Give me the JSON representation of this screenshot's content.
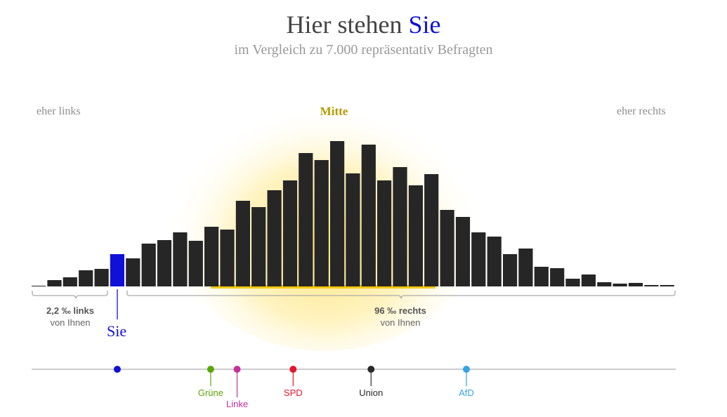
{
  "header": {
    "title_main": "Hier stehen",
    "title_highlight": "Sie",
    "subtitle": "im Vergleich zu 7.000 repräsentativ Befragten"
  },
  "labels": {
    "left": "eher links",
    "center": "Mitte",
    "right": "eher rechts"
  },
  "annotations": {
    "left_value": "2,2 ‰ links",
    "left_sub": "von Ihnen",
    "right_value": "96 ‰ rechts",
    "right_sub": "von Ihnen",
    "sie_label": "Sie"
  },
  "colors": {
    "bar": "#262626",
    "user": "#1010d8",
    "glow": "#ffe680",
    "line": "#f2c200"
  },
  "chart_data": {
    "type": "bar",
    "title": "Hier stehen Sie",
    "xlabel": "eher links — Mitte — eher rechts",
    "ylabel": "",
    "user_bin": 5,
    "values": [
      1,
      9,
      13,
      23,
      25,
      46,
      40,
      61,
      66,
      77,
      65,
      85,
      81,
      122,
      113,
      137,
      151,
      190,
      180,
      207,
      161,
      202,
      151,
      170,
      144,
      160,
      109,
      99,
      77,
      71,
      46,
      54,
      28,
      26,
      11,
      17,
      6,
      4,
      5,
      2,
      2
    ],
    "parties": [
      {
        "name": "Sie",
        "position": 13.3,
        "color": "#1010d8"
      },
      {
        "name": "Grüne",
        "position": 27.8,
        "color": "#5aa60a",
        "row": 0
      },
      {
        "name": "Linke",
        "position": 31.9,
        "color": "#c4309a",
        "row": 1
      },
      {
        "name": "SPD",
        "position": 40.6,
        "color": "#e3162e",
        "row": 0
      },
      {
        "name": "Union",
        "position": 52.7,
        "color": "#2a2a2a",
        "row": 0
      },
      {
        "name": "AfD",
        "position": 67.5,
        "color": "#35a3e0",
        "row": 0
      }
    ]
  }
}
